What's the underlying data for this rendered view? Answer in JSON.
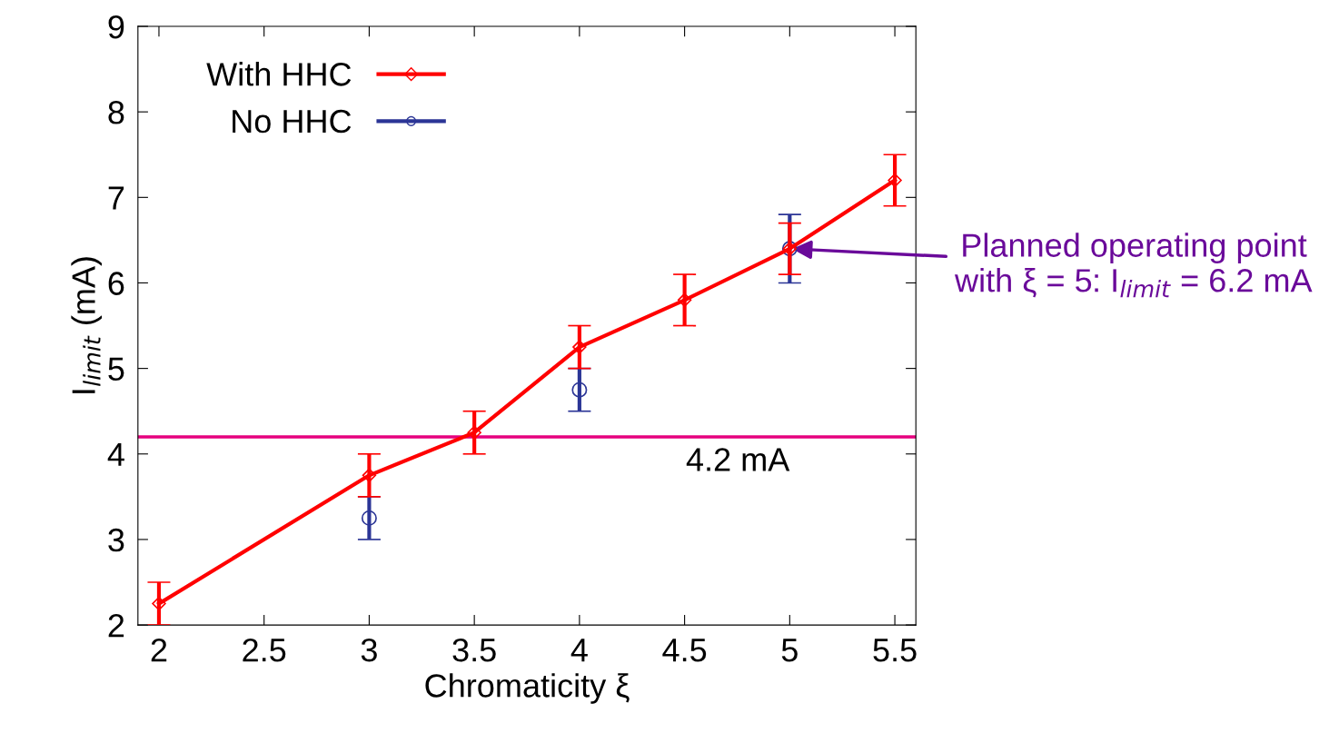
{
  "chart_data": {
    "type": "line",
    "xlabel": "Chromaticity ξ",
    "ylabel": "I$_{limit}$ (mA)",
    "xlim": [
      1.9,
      5.6
    ],
    "xticks": [
      2,
      2.5,
      3,
      3.5,
      4,
      4.5,
      5,
      5.5
    ],
    "ylim": [
      2,
      9
    ],
    "yticks": [
      2,
      3,
      4,
      5,
      6,
      7,
      8,
      9
    ],
    "grid": false,
    "legend": "top left",
    "series": [
      {
        "name": "With HHC",
        "color": "#ff0000",
        "marker": "diamond",
        "x": [
          2,
          3,
          3.5,
          4,
          4.5,
          5,
          5.5
        ],
        "values": [
          2.25,
          3.75,
          4.25,
          5.25,
          5.8,
          6.4,
          7.2
        ],
        "errors": [
          0.25,
          0.25,
          0.25,
          0.25,
          0.3,
          0.3,
          0.3
        ]
      },
      {
        "name": "No HHC",
        "type": "scatter",
        "color": "#2b3596",
        "marker": "circle",
        "x": [
          3,
          4,
          5
        ],
        "values": [
          3.25,
          4.75,
          6.4
        ],
        "errors": [
          0.25,
          0.25,
          0.4
        ]
      }
    ],
    "ref_lines": [
      {
        "axis": "y",
        "value": 4.2,
        "label": "4.2 mA",
        "color": "#e6007e"
      }
    ],
    "annotations": [
      {
        "text": "Planned operating point with ξ = 5: I$_{limit}$ = 6.2 mA",
        "x": 5,
        "y": 6.4
      }
    ]
  }
}
